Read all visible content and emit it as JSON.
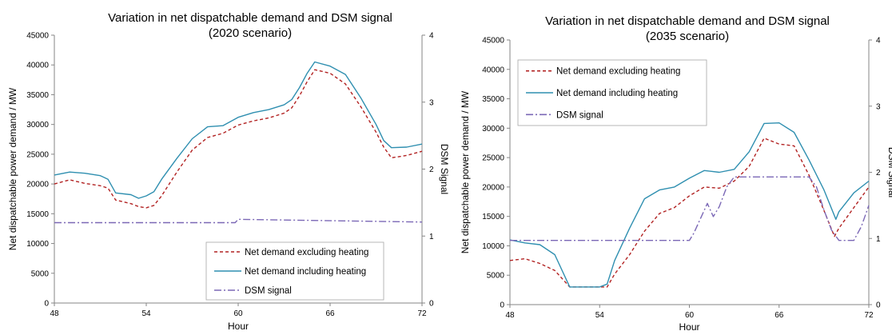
{
  "colors": {
    "excluding": "#b22222",
    "including": "#2f8fb0",
    "dsm": "#7b68b6",
    "axis": "#868686"
  },
  "chart_data": [
    {
      "type": "line",
      "title_line1": "Variation in net dispatchable demand and DSM signal",
      "title_line2": "(2020 scenario)",
      "xlabel": "Hour",
      "ylabel": "Net dispatchable power demand / MW",
      "y2label": "DSM Signal",
      "xlim": [
        48,
        72
      ],
      "ylim": [
        0,
        45000
      ],
      "y2lim": [
        0,
        4
      ],
      "xticks": [
        "48",
        "54",
        "60",
        "66",
        "72"
      ],
      "yticks": [
        "0",
        "5000",
        "10000",
        "15000",
        "20000",
        "25000",
        "30000",
        "35000",
        "40000",
        "45000"
      ],
      "y2ticks": [
        "0",
        "1",
        "2",
        "3",
        "4"
      ],
      "legend_position": "bottom-right",
      "series": [
        {
          "name": "Net demand excluding heating",
          "style": "dashed",
          "axis": "left",
          "x": [
            48,
            49,
            50,
            51,
            51.5,
            52,
            53,
            53.5,
            54,
            54.5,
            55,
            56,
            57,
            58,
            59,
            60,
            61,
            62,
            63,
            63.5,
            64,
            64.5,
            65,
            66,
            67,
            68,
            69,
            69.5,
            70,
            71,
            72
          ],
          "y": [
            20000,
            20700,
            20100,
            19700,
            19300,
            17300,
            16700,
            16200,
            16000,
            16400,
            18000,
            22000,
            25700,
            27800,
            28500,
            29900,
            30600,
            31100,
            31900,
            32800,
            34800,
            37200,
            39200,
            38600,
            36800,
            33000,
            28700,
            26200,
            24400,
            24800,
            25500
          ]
        },
        {
          "name": "Net demand including heating",
          "style": "solid",
          "axis": "left",
          "x": [
            48,
            49,
            50,
            51,
            51.5,
            52,
            53,
            53.5,
            54,
            54.5,
            55,
            56,
            57,
            58,
            59,
            60,
            61,
            62,
            63,
            63.5,
            64,
            64.5,
            65,
            66,
            67,
            68,
            69,
            69.5,
            70,
            71,
            72
          ],
          "y": [
            21500,
            22000,
            21800,
            21400,
            20800,
            18500,
            18200,
            17600,
            18000,
            18700,
            20800,
            24300,
            27600,
            29600,
            29800,
            31200,
            32000,
            32500,
            33300,
            34200,
            36200,
            38600,
            40500,
            39800,
            38400,
            34500,
            30000,
            27300,
            26100,
            26200,
            26700
          ]
        },
        {
          "name": "DSM signal",
          "style": "dashdot",
          "axis": "right",
          "x": [
            48,
            59.8,
            60,
            72
          ],
          "y": [
            1.2,
            1.2,
            1.25,
            1.21
          ]
        }
      ]
    },
    {
      "type": "line",
      "title_line1": "Variation in net dispatchable demand and DSM signal",
      "title_line2": "(2035 scenario)",
      "xlabel": "Hour",
      "ylabel": "Net dispatchable power demand / MW",
      "y2label": "DSM Signal",
      "xlim": [
        48,
        72
      ],
      "ylim": [
        0,
        45000
      ],
      "y2lim": [
        0,
        4
      ],
      "xticks": [
        "48",
        "54",
        "60",
        "66",
        "72"
      ],
      "yticks": [
        "0",
        "5000",
        "10000",
        "15000",
        "20000",
        "25000",
        "30000",
        "35000",
        "40000",
        "45000"
      ],
      "y2ticks": [
        "0",
        "1",
        "2",
        "3",
        "4"
      ],
      "legend_position": "top-left",
      "series": [
        {
          "name": "Net demand excluding heating",
          "style": "dashed",
          "axis": "left",
          "x": [
            48,
            49,
            50,
            51,
            52,
            53,
            54,
            54.5,
            55,
            56,
            57,
            58,
            59,
            60,
            61,
            62,
            63,
            64,
            65,
            66,
            67,
            68,
            69,
            69.7,
            70,
            71,
            72
          ],
          "y": [
            7500,
            7800,
            7000,
            5800,
            3000,
            3000,
            3000,
            3000,
            5200,
            8500,
            12500,
            15500,
            16500,
            18500,
            20000,
            19800,
            21000,
            23500,
            28300,
            27300,
            27000,
            22000,
            16000,
            11600,
            13000,
            16500,
            20000
          ]
        },
        {
          "name": "Net demand including heating",
          "style": "solid",
          "axis": "left",
          "x": [
            48,
            49,
            50,
            51,
            52,
            53,
            54,
            54.5,
            55,
            56,
            57,
            58,
            59,
            60,
            61,
            62,
            63,
            64,
            65,
            66,
            67,
            68,
            69,
            69.8,
            70,
            71,
            72
          ],
          "y": [
            11000,
            10500,
            10200,
            8500,
            3000,
            3000,
            3000,
            3500,
            7500,
            13000,
            18000,
            19500,
            20000,
            21500,
            22800,
            22500,
            23000,
            26000,
            30800,
            30900,
            29300,
            24600,
            19500,
            14500,
            15800,
            19000,
            21000
          ]
        },
        {
          "name": "DSM signal",
          "style": "dashdot",
          "axis": "right",
          "x": [
            48,
            60,
            60.3,
            60.8,
            61.2,
            61.6,
            62,
            62.5,
            63,
            66,
            67,
            68,
            68.5,
            69,
            69.5,
            70,
            70.5,
            71,
            71.5,
            72
          ],
          "y": [
            0.97,
            0.97,
            1.08,
            1.33,
            1.53,
            1.33,
            1.48,
            1.78,
            1.93,
            1.93,
            1.93,
            1.93,
            1.78,
            1.43,
            1.13,
            0.97,
            0.97,
            0.97,
            1.18,
            1.5
          ]
        }
      ]
    }
  ]
}
